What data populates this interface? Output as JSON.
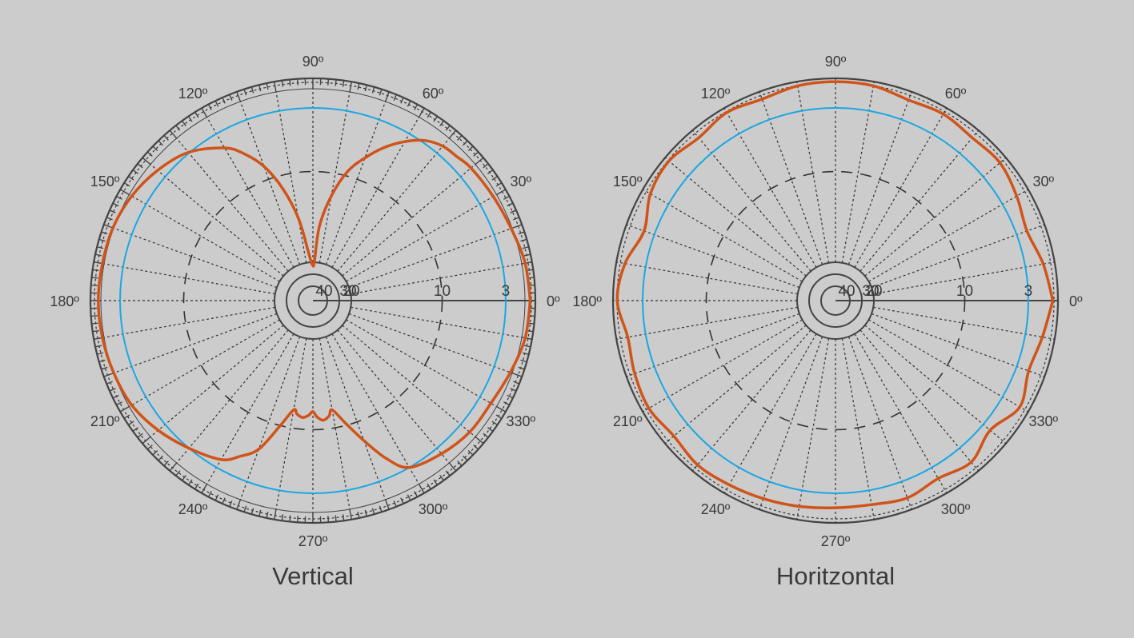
{
  "colors": {
    "background": "#cccccc",
    "pattern": "#d0541a",
    "reference_circle": "#1aa7e2",
    "grid": "#333333",
    "frame": "#444444"
  },
  "chart_data": [
    {
      "type": "polar",
      "title": "Vertical",
      "angle_unit": "degrees",
      "angle_labels": [
        "0º",
        "30º",
        "60º",
        "90º",
        "120º",
        "150º",
        "180º",
        "210º",
        "240º",
        "270º",
        "300º",
        "330º"
      ],
      "radial_labels": [
        "40",
        "30",
        "20",
        "10",
        "3"
      ],
      "radial_scale_db": [
        40,
        30,
        20,
        10,
        3
      ],
      "reference_circle_db": 3,
      "outer_tick_marks": true,
      "series": [
        {
          "angles": [
            0,
            10,
            20,
            30,
            40,
            45,
            50,
            55,
            60,
            65,
            70,
            75,
            80,
            85,
            88,
            90,
            92,
            95,
            100,
            105,
            110,
            115,
            120,
            130,
            140,
            150,
            160,
            170,
            180,
            190,
            200,
            210,
            220,
            230,
            240,
            245,
            250,
            255,
            260,
            262,
            265,
            268,
            270,
            272,
            275,
            278,
            280,
            285,
            290,
            295,
            300,
            310,
            320,
            330,
            340,
            350,
            360
          ],
          "values": [
            0.3,
            0.5,
            1.0,
            1.3,
            1.5,
            1.8,
            2.0,
            2.7,
            4.0,
            5.6,
            7.5,
            9.5,
            12.5,
            16.0,
            20.5,
            22,
            21.0,
            19.0,
            15.0,
            11.5,
            8.5,
            6.4,
            4.8,
            2.9,
            1.9,
            1.2,
            0.8,
            0.7,
            0.6,
            0.7,
            0.9,
            1.2,
            2.0,
            3.0,
            4.0,
            5.3,
            6.8,
            9.8,
            12.0,
            11.6,
            11.3,
            11.6,
            12.0,
            11.4,
            11.0,
            11.4,
            12.0,
            10.2,
            7.8,
            5.0,
            3.0,
            2.2,
            1.7,
            1.6,
            1.1,
            0.5,
            0.3
          ]
        }
      ]
    },
    {
      "type": "polar",
      "title": "Horitzontal",
      "angle_unit": "degrees",
      "angle_labels": [
        "0º",
        "30º",
        "60º",
        "90º",
        "120º",
        "150º",
        "180º",
        "210º",
        "240º",
        "270º",
        "300º",
        "330º"
      ],
      "radial_labels": [
        "40",
        "30",
        "20",
        "10",
        "3"
      ],
      "radial_scale_db": [
        40,
        30,
        20,
        10,
        3
      ],
      "reference_circle_db": 3,
      "outer_tick_marks": false,
      "series": [
        {
          "angles": [
            0,
            10,
            20,
            30,
            40,
            50,
            60,
            70,
            80,
            90,
            100,
            110,
            120,
            130,
            140,
            150,
            160,
            170,
            180,
            190,
            200,
            210,
            220,
            230,
            240,
            250,
            260,
            270,
            280,
            290,
            300,
            310,
            320,
            330,
            340,
            350,
            360
          ],
          "values": [
            0.3,
            1.0,
            1.8,
            1.2,
            0.6,
            0.8,
            0.5,
            0.7,
            0.2,
            0.1,
            0.2,
            0.6,
            0.3,
            0.8,
            0.3,
            0.7,
            1.8,
            0.7,
            0.2,
            1.0,
            0.7,
            0.5,
            1.0,
            0.6,
            0.8,
            1.0,
            1.2,
            1.4,
            1.4,
            1.1,
            1.6,
            1.0,
            2.0,
            0.8,
            1.6,
            1.1,
            0.3
          ]
        }
      ]
    }
  ]
}
